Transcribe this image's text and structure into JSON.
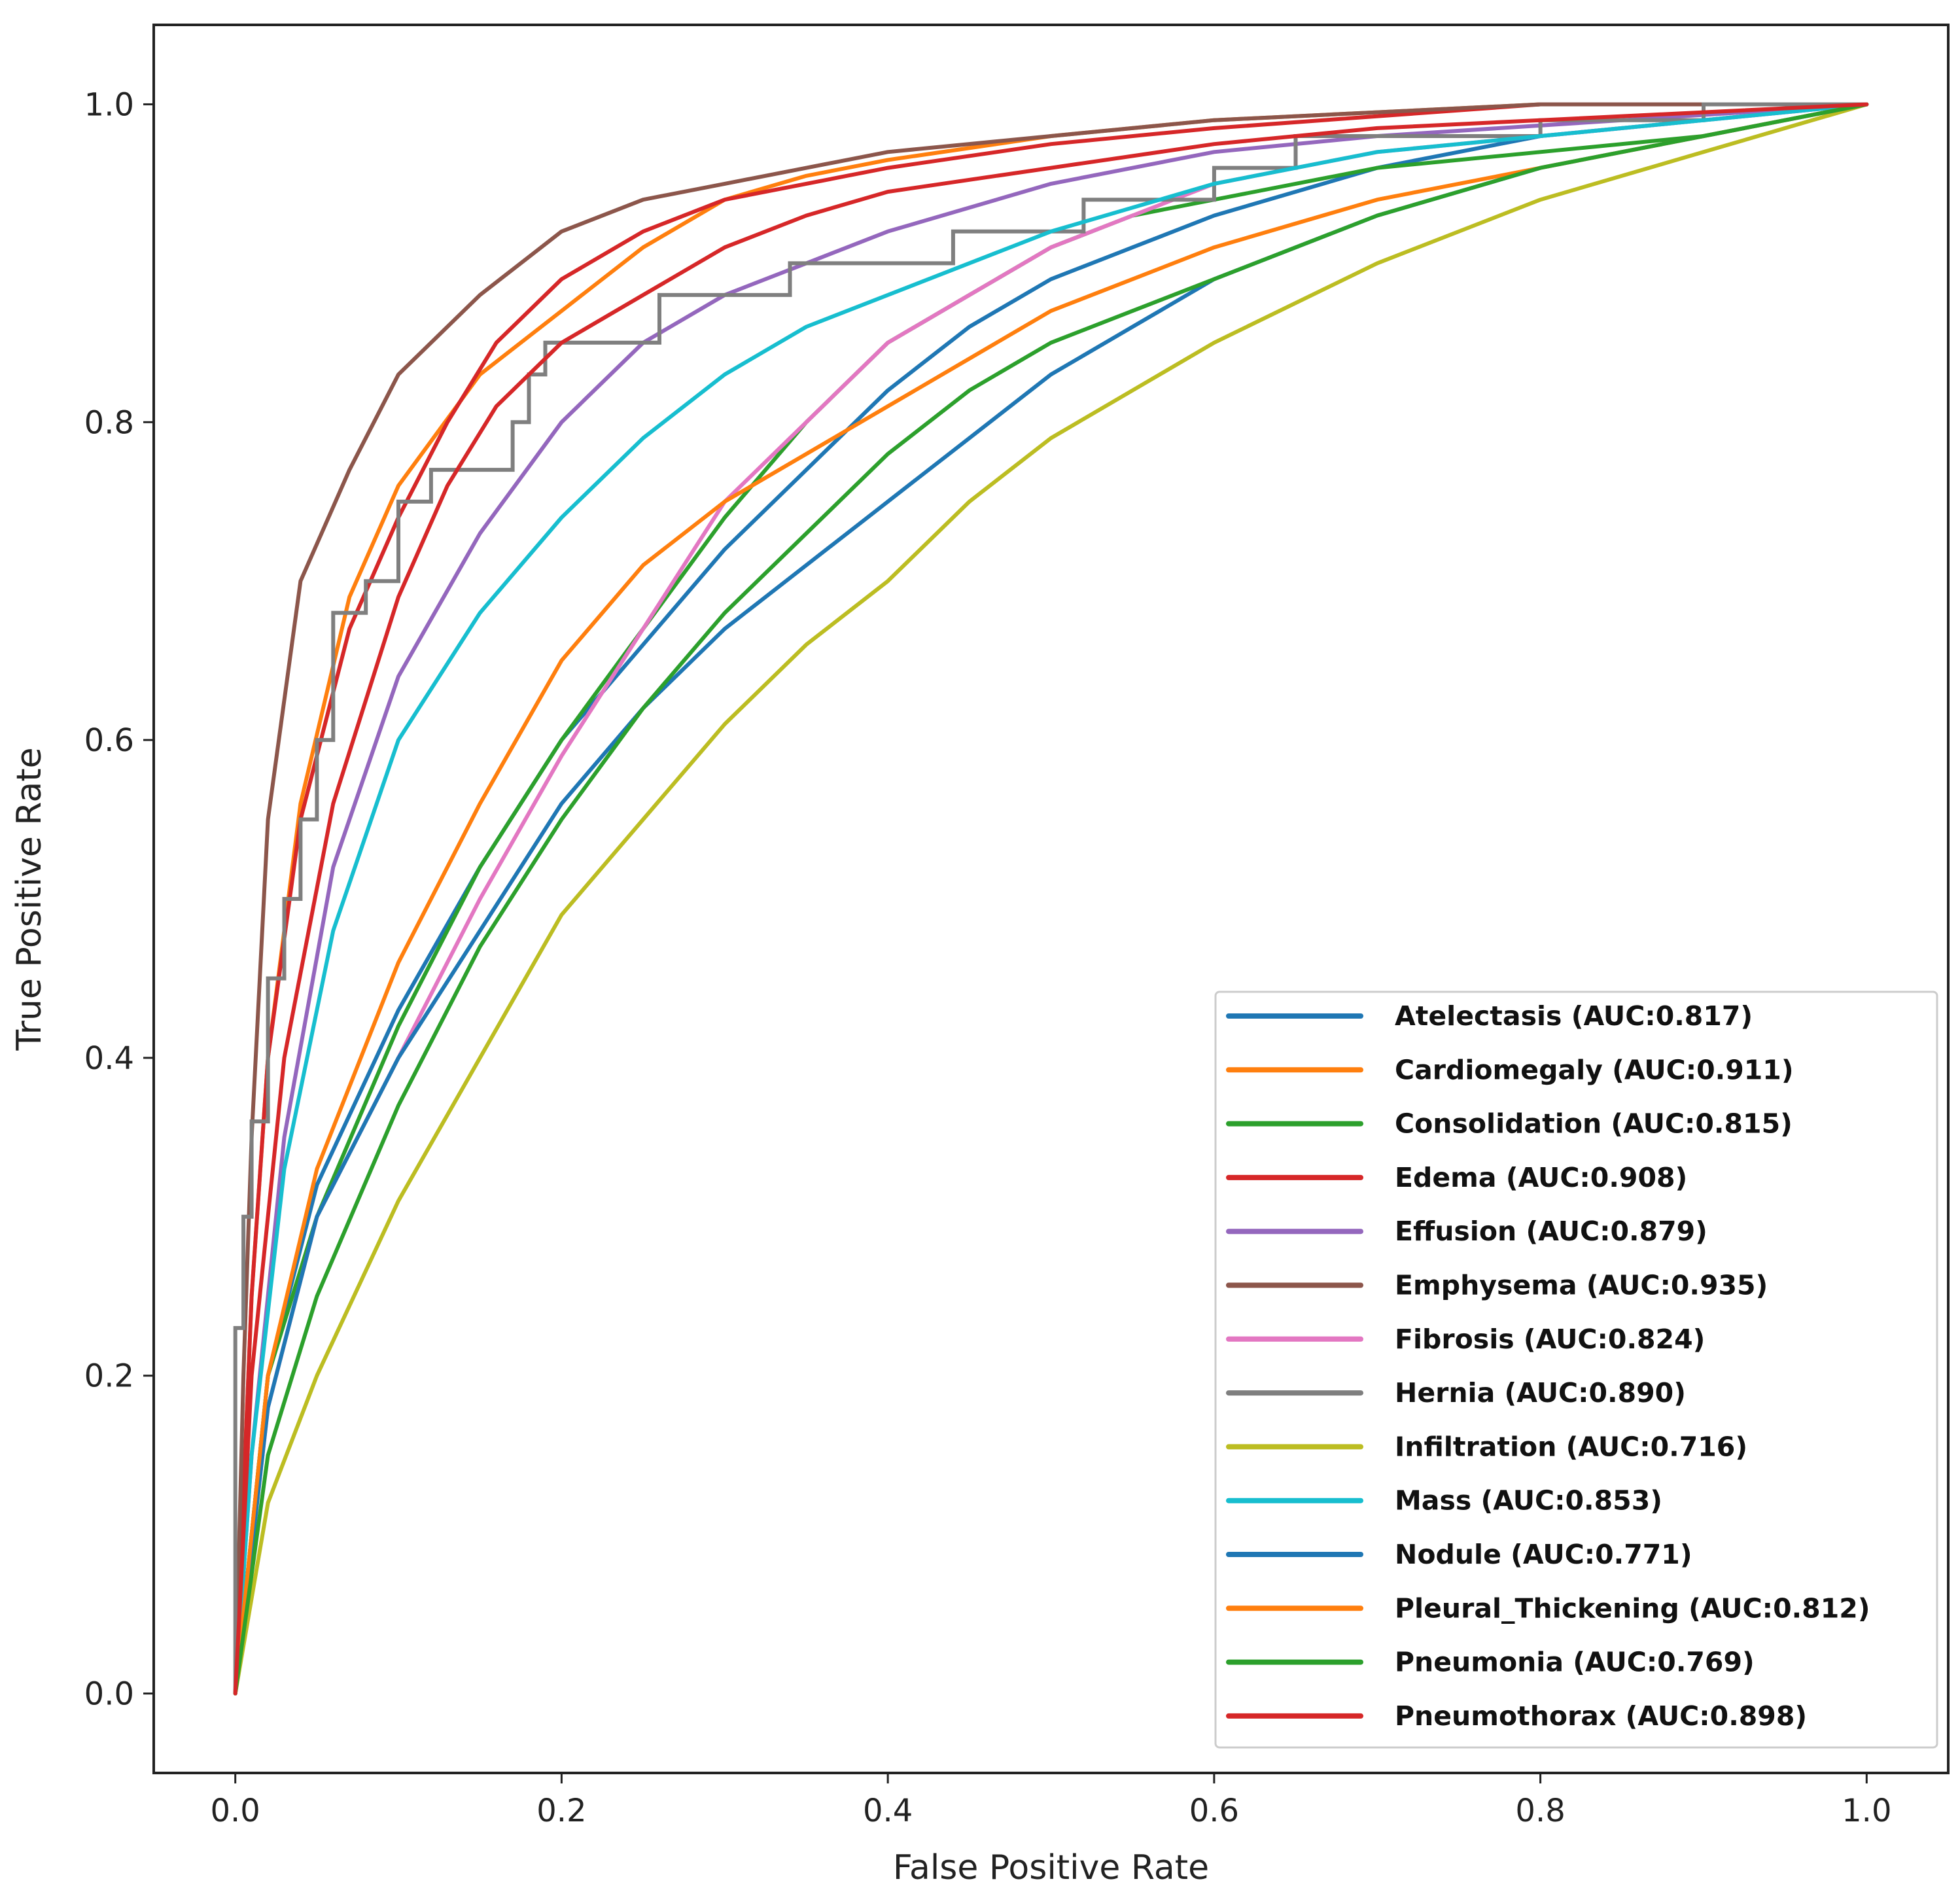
{
  "chart_data": {
    "type": "line",
    "title": "",
    "xlabel": "False Positive Rate",
    "ylabel": "True Positive Rate",
    "xlim": [
      -0.05,
      1.05
    ],
    "ylim": [
      -0.05,
      1.05
    ],
    "xticks": [
      "0.0",
      "0.2",
      "0.4",
      "0.6",
      "0.8",
      "1.0"
    ],
    "yticks": [
      "0.0",
      "0.2",
      "0.4",
      "0.6",
      "0.8",
      "1.0"
    ],
    "legend_position": "lower-right",
    "grid": false,
    "series": [
      {
        "name": "Atelectasis",
        "label": "Atelectasis (AUC:0.817)",
        "auc": 0.817,
        "color": "#1f77b4",
        "step": false,
        "points": [
          [
            0,
            0
          ],
          [
            0.02,
            0.2
          ],
          [
            0.05,
            0.32
          ],
          [
            0.1,
            0.43
          ],
          [
            0.15,
            0.52
          ],
          [
            0.2,
            0.6
          ],
          [
            0.25,
            0.66
          ],
          [
            0.3,
            0.72
          ],
          [
            0.35,
            0.77
          ],
          [
            0.4,
            0.82
          ],
          [
            0.45,
            0.86
          ],
          [
            0.5,
            0.89
          ],
          [
            0.55,
            0.91
          ],
          [
            0.6,
            0.93
          ],
          [
            0.7,
            0.96
          ],
          [
            0.8,
            0.98
          ],
          [
            0.9,
            0.99
          ],
          [
            1,
            1
          ]
        ]
      },
      {
        "name": "Cardiomegaly",
        "label": "Cardiomegaly (AUC:0.911)",
        "auc": 0.911,
        "color": "#ff7f0e",
        "step": false,
        "points": [
          [
            0,
            0
          ],
          [
            0.01,
            0.25
          ],
          [
            0.02,
            0.4
          ],
          [
            0.04,
            0.56
          ],
          [
            0.07,
            0.69
          ],
          [
            0.1,
            0.76
          ],
          [
            0.15,
            0.83
          ],
          [
            0.2,
            0.87
          ],
          [
            0.25,
            0.91
          ],
          [
            0.3,
            0.94
          ],
          [
            0.35,
            0.955
          ],
          [
            0.4,
            0.965
          ],
          [
            0.5,
            0.98
          ],
          [
            0.6,
            0.99
          ],
          [
            0.8,
            1
          ],
          [
            1,
            1
          ]
        ]
      },
      {
        "name": "Consolidation",
        "label": "Consolidation (AUC:0.815)",
        "auc": 0.815,
        "color": "#2ca02c",
        "step": false,
        "points": [
          [
            0,
            0
          ],
          [
            0.02,
            0.2
          ],
          [
            0.05,
            0.3
          ],
          [
            0.1,
            0.42
          ],
          [
            0.15,
            0.52
          ],
          [
            0.2,
            0.6
          ],
          [
            0.25,
            0.67
          ],
          [
            0.3,
            0.74
          ],
          [
            0.35,
            0.8
          ],
          [
            0.4,
            0.85
          ],
          [
            0.45,
            0.88
          ],
          [
            0.5,
            0.91
          ],
          [
            0.55,
            0.93
          ],
          [
            0.6,
            0.94
          ],
          [
            0.7,
            0.96
          ],
          [
            0.8,
            0.97
          ],
          [
            0.9,
            0.98
          ],
          [
            1,
            1
          ]
        ]
      },
      {
        "name": "Edema",
        "label": "Edema (AUC:0.908)",
        "auc": 0.908,
        "color": "#d62728",
        "step": false,
        "points": [
          [
            0,
            0
          ],
          [
            0.01,
            0.25
          ],
          [
            0.02,
            0.4
          ],
          [
            0.04,
            0.55
          ],
          [
            0.07,
            0.67
          ],
          [
            0.1,
            0.74
          ],
          [
            0.13,
            0.8
          ],
          [
            0.16,
            0.85
          ],
          [
            0.2,
            0.89
          ],
          [
            0.25,
            0.92
          ],
          [
            0.3,
            0.94
          ],
          [
            0.4,
            0.96
          ],
          [
            0.5,
            0.975
          ],
          [
            0.6,
            0.985
          ],
          [
            0.8,
            1
          ],
          [
            1,
            1
          ]
        ]
      },
      {
        "name": "Effusion",
        "label": "Effusion (AUC:0.879)",
        "auc": 0.879,
        "color": "#9467bd",
        "step": false,
        "points": [
          [
            0,
            0
          ],
          [
            0.01,
            0.15
          ],
          [
            0.03,
            0.35
          ],
          [
            0.06,
            0.52
          ],
          [
            0.1,
            0.64
          ],
          [
            0.15,
            0.73
          ],
          [
            0.2,
            0.8
          ],
          [
            0.25,
            0.85
          ],
          [
            0.3,
            0.88
          ],
          [
            0.35,
            0.9
          ],
          [
            0.4,
            0.92
          ],
          [
            0.5,
            0.95
          ],
          [
            0.6,
            0.97
          ],
          [
            0.7,
            0.98
          ],
          [
            0.85,
            0.99
          ],
          [
            1,
            1
          ]
        ]
      },
      {
        "name": "Emphysema",
        "label": "Emphysema (AUC:0.935)",
        "auc": 0.935,
        "color": "#8c564b",
        "step": false,
        "points": [
          [
            0,
            0
          ],
          [
            0.005,
            0.2
          ],
          [
            0.01,
            0.35
          ],
          [
            0.02,
            0.55
          ],
          [
            0.04,
            0.7
          ],
          [
            0.07,
            0.77
          ],
          [
            0.1,
            0.83
          ],
          [
            0.15,
            0.88
          ],
          [
            0.2,
            0.92
          ],
          [
            0.25,
            0.94
          ],
          [
            0.3,
            0.95
          ],
          [
            0.4,
            0.97
          ],
          [
            0.5,
            0.98
          ],
          [
            0.6,
            0.99
          ],
          [
            0.8,
            1
          ],
          [
            1,
            1
          ]
        ]
      },
      {
        "name": "Fibrosis",
        "label": "Fibrosis (AUC:0.824)",
        "auc": 0.824,
        "color": "#e377c2",
        "step": false,
        "points": [
          [
            0,
            0
          ],
          [
            0.02,
            0.18
          ],
          [
            0.05,
            0.3
          ],
          [
            0.1,
            0.4
          ],
          [
            0.15,
            0.5
          ],
          [
            0.2,
            0.59
          ],
          [
            0.25,
            0.67
          ],
          [
            0.3,
            0.75
          ],
          [
            0.35,
            0.8
          ],
          [
            0.4,
            0.85
          ],
          [
            0.45,
            0.88
          ],
          [
            0.5,
            0.91
          ],
          [
            0.6,
            0.95
          ],
          [
            0.7,
            0.97
          ],
          [
            0.8,
            0.98
          ],
          [
            0.9,
            0.99
          ],
          [
            1,
            1
          ]
        ]
      },
      {
        "name": "Hernia",
        "label": "Hernia (AUC:0.890)",
        "auc": 0.89,
        "color": "#7f7f7f",
        "step": true,
        "points": [
          [
            0,
            0
          ],
          [
            0,
            0.23
          ],
          [
            0.005,
            0.23
          ],
          [
            0.005,
            0.3
          ],
          [
            0.01,
            0.3
          ],
          [
            0.01,
            0.36
          ],
          [
            0.02,
            0.36
          ],
          [
            0.02,
            0.45
          ],
          [
            0.03,
            0.45
          ],
          [
            0.03,
            0.5
          ],
          [
            0.04,
            0.5
          ],
          [
            0.04,
            0.55
          ],
          [
            0.05,
            0.55
          ],
          [
            0.05,
            0.6
          ],
          [
            0.06,
            0.6
          ],
          [
            0.06,
            0.68
          ],
          [
            0.08,
            0.68
          ],
          [
            0.08,
            0.7
          ],
          [
            0.1,
            0.7
          ],
          [
            0.1,
            0.75
          ],
          [
            0.12,
            0.75
          ],
          [
            0.12,
            0.77
          ],
          [
            0.17,
            0.77
          ],
          [
            0.17,
            0.8
          ],
          [
            0.18,
            0.8
          ],
          [
            0.18,
            0.83
          ],
          [
            0.19,
            0.83
          ],
          [
            0.19,
            0.85
          ],
          [
            0.26,
            0.85
          ],
          [
            0.26,
            0.88
          ],
          [
            0.34,
            0.88
          ],
          [
            0.34,
            0.9
          ],
          [
            0.44,
            0.9
          ],
          [
            0.44,
            0.92
          ],
          [
            0.52,
            0.92
          ],
          [
            0.52,
            0.94
          ],
          [
            0.6,
            0.94
          ],
          [
            0.6,
            0.96
          ],
          [
            0.65,
            0.96
          ],
          [
            0.65,
            0.98
          ],
          [
            0.8,
            0.98
          ],
          [
            0.8,
            0.99
          ],
          [
            0.9,
            0.99
          ],
          [
            0.9,
            1
          ],
          [
            1,
            1
          ]
        ]
      },
      {
        "name": "Infiltration",
        "label": "Infiltration (AUC:0.716)",
        "auc": 0.716,
        "color": "#bcbd22",
        "step": false,
        "points": [
          [
            0,
            0
          ],
          [
            0.02,
            0.12
          ],
          [
            0.05,
            0.2
          ],
          [
            0.1,
            0.31
          ],
          [
            0.15,
            0.4
          ],
          [
            0.2,
            0.49
          ],
          [
            0.25,
            0.55
          ],
          [
            0.3,
            0.61
          ],
          [
            0.35,
            0.66
          ],
          [
            0.4,
            0.7
          ],
          [
            0.45,
            0.75
          ],
          [
            0.5,
            0.79
          ],
          [
            0.55,
            0.82
          ],
          [
            0.6,
            0.85
          ],
          [
            0.7,
            0.9
          ],
          [
            0.8,
            0.94
          ],
          [
            0.9,
            0.97
          ],
          [
            1,
            1
          ]
        ]
      },
      {
        "name": "Mass",
        "label": "Mass (AUC:0.853)",
        "auc": 0.853,
        "color": "#17becf",
        "step": false,
        "points": [
          [
            0,
            0
          ],
          [
            0.01,
            0.15
          ],
          [
            0.03,
            0.33
          ],
          [
            0.06,
            0.48
          ],
          [
            0.1,
            0.6
          ],
          [
            0.15,
            0.68
          ],
          [
            0.2,
            0.74
          ],
          [
            0.25,
            0.79
          ],
          [
            0.3,
            0.83
          ],
          [
            0.35,
            0.86
          ],
          [
            0.4,
            0.88
          ],
          [
            0.5,
            0.92
          ],
          [
            0.6,
            0.95
          ],
          [
            0.7,
            0.97
          ],
          [
            0.8,
            0.98
          ],
          [
            1,
            1
          ]
        ]
      },
      {
        "name": "Nodule",
        "label": "Nodule (AUC:0.771)",
        "auc": 0.771,
        "color": "#1f77b4",
        "step": false,
        "points": [
          [
            0,
            0
          ],
          [
            0.02,
            0.18
          ],
          [
            0.05,
            0.3
          ],
          [
            0.1,
            0.4
          ],
          [
            0.15,
            0.48
          ],
          [
            0.2,
            0.56
          ],
          [
            0.25,
            0.62
          ],
          [
            0.3,
            0.67
          ],
          [
            0.35,
            0.71
          ],
          [
            0.4,
            0.75
          ],
          [
            0.45,
            0.79
          ],
          [
            0.5,
            0.83
          ],
          [
            0.55,
            0.86
          ],
          [
            0.6,
            0.89
          ],
          [
            0.7,
            0.93
          ],
          [
            0.8,
            0.96
          ],
          [
            0.9,
            0.98
          ],
          [
            1,
            1
          ]
        ]
      },
      {
        "name": "Pleural_Thickening",
        "label": "Pleural_Thickening (AUC:0.812)",
        "auc": 0.812,
        "color": "#ff7f0e",
        "step": false,
        "points": [
          [
            0,
            0
          ],
          [
            0.02,
            0.2
          ],
          [
            0.05,
            0.33
          ],
          [
            0.1,
            0.46
          ],
          [
            0.15,
            0.56
          ],
          [
            0.2,
            0.65
          ],
          [
            0.25,
            0.71
          ],
          [
            0.3,
            0.75
          ],
          [
            0.35,
            0.78
          ],
          [
            0.4,
            0.81
          ],
          [
            0.45,
            0.84
          ],
          [
            0.5,
            0.87
          ],
          [
            0.55,
            0.89
          ],
          [
            0.6,
            0.91
          ],
          [
            0.7,
            0.94
          ],
          [
            0.8,
            0.96
          ],
          [
            0.9,
            0.98
          ],
          [
            1,
            1
          ]
        ]
      },
      {
        "name": "Pneumonia",
        "label": "Pneumonia (AUC:0.769)",
        "auc": 0.769,
        "color": "#2ca02c",
        "step": false,
        "points": [
          [
            0,
            0
          ],
          [
            0.02,
            0.15
          ],
          [
            0.05,
            0.25
          ],
          [
            0.1,
            0.37
          ],
          [
            0.15,
            0.47
          ],
          [
            0.2,
            0.55
          ],
          [
            0.25,
            0.62
          ],
          [
            0.3,
            0.68
          ],
          [
            0.35,
            0.73
          ],
          [
            0.4,
            0.78
          ],
          [
            0.45,
            0.82
          ],
          [
            0.5,
            0.85
          ],
          [
            0.55,
            0.87
          ],
          [
            0.6,
            0.89
          ],
          [
            0.7,
            0.93
          ],
          [
            0.8,
            0.96
          ],
          [
            0.9,
            0.98
          ],
          [
            1,
            1
          ]
        ]
      },
      {
        "name": "Pneumothorax",
        "label": "Pneumothorax (AUC:0.898)",
        "auc": 0.898,
        "color": "#d62728",
        "step": false,
        "points": [
          [
            0,
            0
          ],
          [
            0.01,
            0.2
          ],
          [
            0.03,
            0.4
          ],
          [
            0.06,
            0.56
          ],
          [
            0.1,
            0.69
          ],
          [
            0.13,
            0.76
          ],
          [
            0.16,
            0.81
          ],
          [
            0.2,
            0.85
          ],
          [
            0.25,
            0.88
          ],
          [
            0.3,
            0.91
          ],
          [
            0.35,
            0.93
          ],
          [
            0.4,
            0.945
          ],
          [
            0.5,
            0.96
          ],
          [
            0.6,
            0.975
          ],
          [
            0.7,
            0.985
          ],
          [
            0.8,
            0.99
          ],
          [
            1,
            1
          ]
        ]
      }
    ]
  }
}
